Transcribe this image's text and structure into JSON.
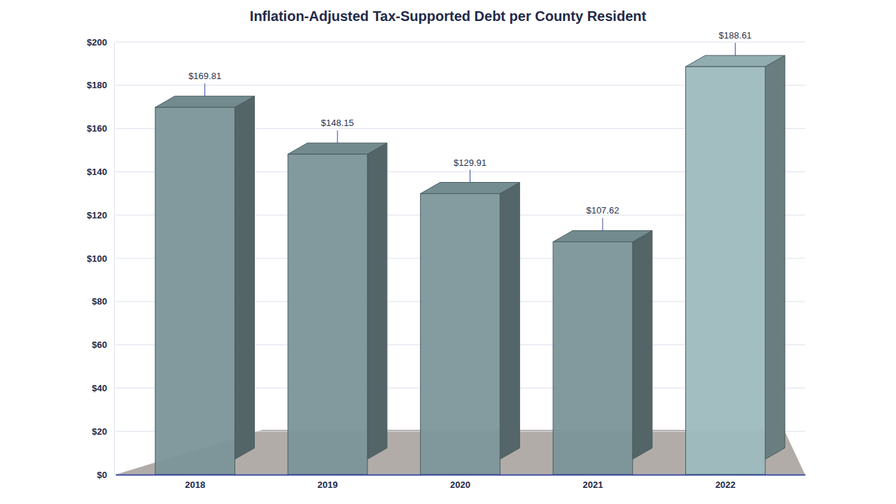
{
  "chart_data": {
    "type": "bar",
    "title": "Inflation-Adjusted  Tax-Supported Debt per County Resident",
    "categories": [
      "2018",
      "2019",
      "2020",
      "2021",
      "2022"
    ],
    "values": [
      169.81,
      148.15,
      129.91,
      107.62,
      188.61
    ],
    "value_labels": [
      "$169.81",
      "$148.15",
      "$129.91",
      "$107.62",
      "$188.61"
    ],
    "colors": [
      "#7b9599",
      "#7b9599",
      "#7d979b",
      "#7b9599",
      "#9dbabd"
    ],
    "ylim": [
      0,
      200
    ],
    "yticks": [
      {
        "value": 0,
        "label": "$0"
      },
      {
        "value": 20,
        "label": "$20"
      },
      {
        "value": 40,
        "label": "$40"
      },
      {
        "value": 60,
        "label": "$60"
      },
      {
        "value": 80,
        "label": "$80"
      },
      {
        "value": 100,
        "label": "$100"
      },
      {
        "value": 120,
        "label": "$120"
      },
      {
        "value": 140,
        "label": "$140"
      },
      {
        "value": 160,
        "label": "$160"
      },
      {
        "value": 180,
        "label": "$180"
      },
      {
        "value": 200,
        "label": "$200"
      }
    ],
    "grid": true,
    "data_labels": true
  }
}
